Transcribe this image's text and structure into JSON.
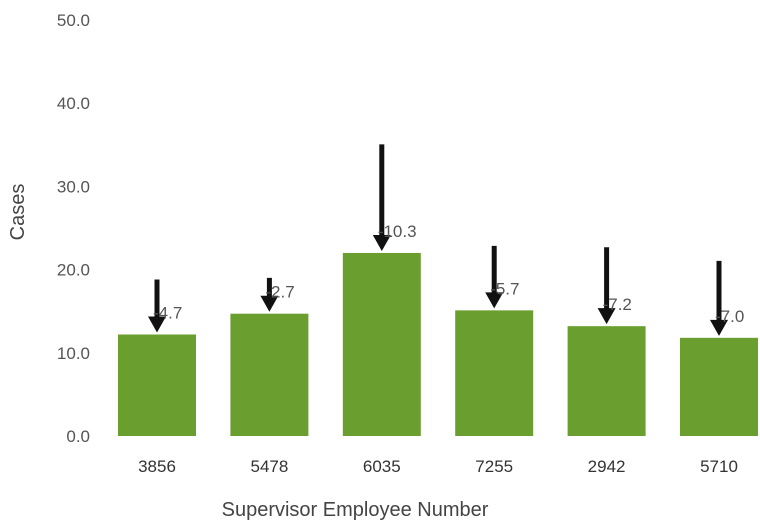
{
  "chart_data": {
    "type": "bar",
    "title": "",
    "xlabel": "Supervisor Employee Number",
    "ylabel": "Cases",
    "categories": [
      "3856",
      "5478",
      "6035",
      "7255",
      "2942",
      "5710"
    ],
    "values": [
      12.2,
      14.7,
      22.0,
      15.1,
      13.2,
      11.8
    ],
    "change_labels": [
      "-4.7",
      "-2.7",
      "-10.3",
      "-5.7",
      "-7.2",
      "-7.0"
    ],
    "change_values": [
      -4.7,
      -2.7,
      -10.3,
      -5.7,
      -7.2,
      -7.0
    ],
    "ylim": [
      0,
      50
    ],
    "yticks": [
      "0.0",
      "10.0",
      "20.0",
      "30.0",
      "40.0",
      "50.0"
    ],
    "ytick_values": [
      0,
      10,
      20,
      30,
      40,
      50
    ],
    "grid": false,
    "bar_color": "#6a9e2f",
    "arrow_color": "#111111"
  }
}
